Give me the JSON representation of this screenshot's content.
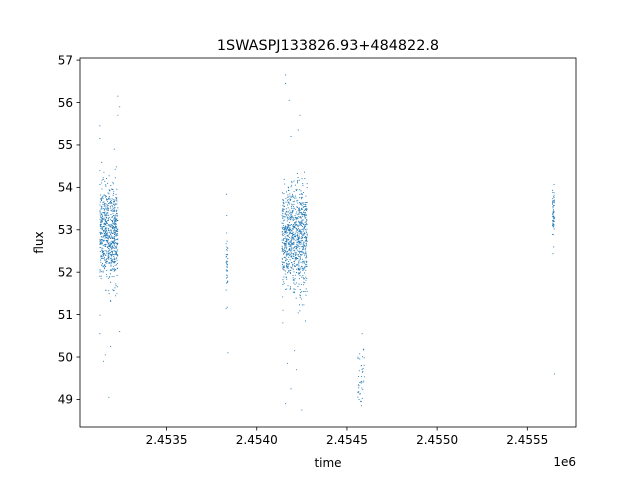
{
  "chart_data": {
    "type": "scatter",
    "title": "1SWASPJ133826.93+484822.8",
    "xlabel": "time",
    "ylabel": "flux",
    "x_offset_label": "1e6",
    "xlim": [
      2.45302,
      2.45577
    ],
    "ylim": [
      48.35,
      57.05
    ],
    "x_ticks": [
      2.4535,
      2.454,
      2.4545,
      2.455,
      2.4555
    ],
    "x_tick_labels": [
      "2.4535",
      "2.4540",
      "2.4545",
      "2.4550",
      "2.4555"
    ],
    "y_ticks": [
      49,
      50,
      51,
      52,
      53,
      54,
      55,
      56,
      57
    ],
    "y_tick_labels": [
      "49",
      "50",
      "51",
      "52",
      "53",
      "54",
      "55",
      "56",
      "57"
    ],
    "grid": false,
    "marker_color": "#1f77b4",
    "series": [
      {
        "clusters": [
          {
            "x_range": [
              2.45313,
              2.45323
            ],
            "y_center": 52.9,
            "y_spread": 0.55,
            "n": 700
          },
          {
            "x_range": [
              2.45383,
              2.45384
            ],
            "y_center": 52.1,
            "y_spread": 0.55,
            "n": 40
          },
          {
            "x_range": [
              2.45414,
              2.45428
            ],
            "y_center": 52.8,
            "y_spread": 0.6,
            "n": 900
          },
          {
            "x_range": [
              2.45456,
              2.4546
            ],
            "y_center": 49.6,
            "y_spread": 0.35,
            "n": 40
          },
          {
            "x_range": [
              2.45564,
              2.45565
            ],
            "y_center": 53.3,
            "y_spread": 0.35,
            "n": 60
          }
        ],
        "points": [
          [
            2.45313,
            55.45
          ],
          [
            2.45313,
            55.15
          ],
          [
            2.45323,
            56.15
          ],
          [
            2.45324,
            55.9
          ],
          [
            2.45323,
            55.7
          ],
          [
            2.45321,
            54.9
          ],
          [
            2.45313,
            50.55
          ],
          [
            2.45319,
            50.25
          ],
          [
            2.45316,
            50.05
          ],
          [
            2.45318,
            49.05
          ],
          [
            2.45315,
            49.9
          ],
          [
            2.45324,
            50.6
          ],
          [
            2.45384,
            50.1
          ],
          [
            2.45416,
            56.65
          ],
          [
            2.45416,
            56.45
          ],
          [
            2.45418,
            56.05
          ],
          [
            2.45419,
            55.2
          ],
          [
            2.45424,
            55.7
          ],
          [
            2.45423,
            55.35
          ],
          [
            2.45417,
            49.85
          ],
          [
            2.45416,
            48.9
          ],
          [
            2.45422,
            49.7
          ],
          [
            2.45419,
            49.25
          ],
          [
            2.45425,
            48.75
          ],
          [
            2.45421,
            50.15
          ],
          [
            2.45427,
            50.85
          ],
          [
            2.45458,
            48.85
          ],
          [
            2.45458,
            48.95
          ],
          [
            2.45565,
            49.6
          ]
        ]
      }
    ]
  }
}
